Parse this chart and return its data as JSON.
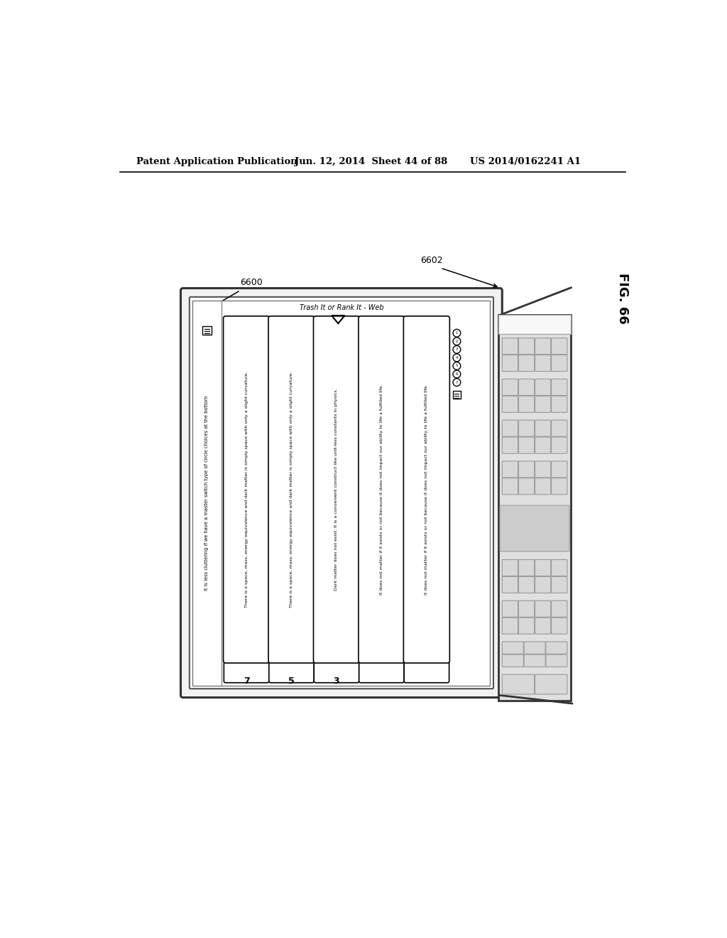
{
  "title_left": "Patent Application Publication",
  "title_mid": "Jun. 12, 2014  Sheet 44 of 88",
  "title_right": "US 2014/0162241 A1",
  "fig_label": "FIG. 66",
  "screen_title": "Trash It or Rank It - Web",
  "screen_subtitle": "It is less cluttering if we have a master switch type of circle choices at the bottom",
  "items": [
    {
      "rank": "7",
      "text": "There is a space, mass, energy equivalence and dark matter is simply space with only a slight curvature."
    },
    {
      "rank": "5",
      "text": "There is a space, mass, energy equivalence and dark matter is simply space with only a slight curvature."
    },
    {
      "rank": "3",
      "text": "Dark matter does not exist. It is a convenient construct like unit-less constants in physics."
    },
    {
      "rank": "",
      "text": "It does not matter if it exists or not because it does not impact our ability to life a fulfilled life."
    },
    {
      "rank": "",
      "text": "It does not matter if it exists or not because it does not impact our ability to life a fulfilled life."
    }
  ],
  "background_color": "#ffffff"
}
